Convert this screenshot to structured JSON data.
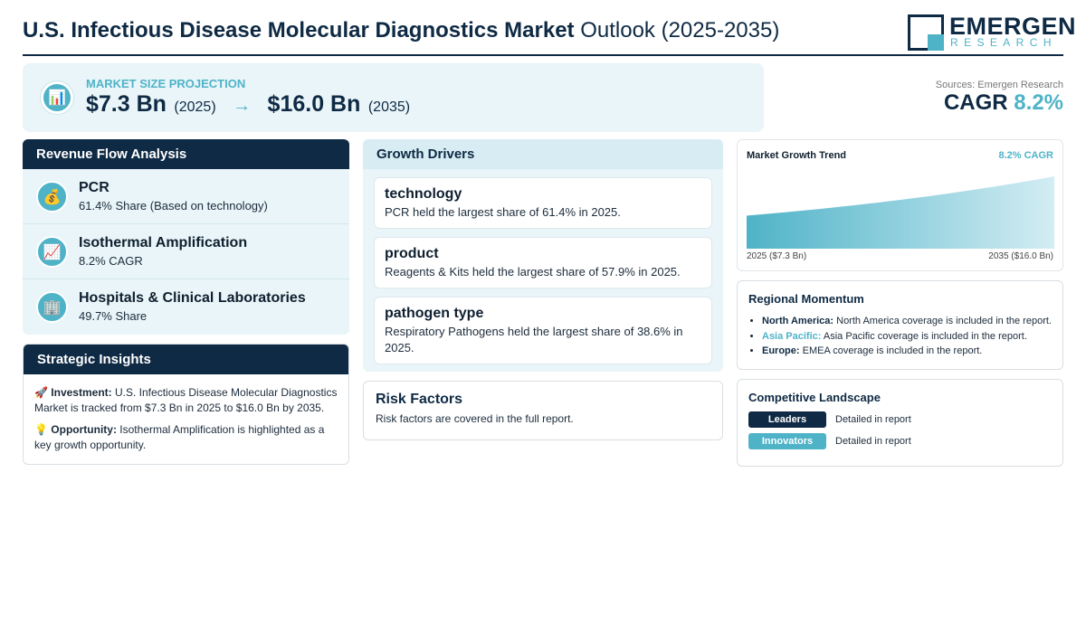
{
  "header": {
    "title_bold": "U.S. Infectious Disease Molecular Diagnostics Market",
    "title_light": "Outlook (2025-2035)",
    "logo_name": "EMERGEN",
    "logo_sub": "RESEARCH"
  },
  "projection": {
    "label": "MARKET SIZE PROJECTION",
    "start_value": "$7.3 Bn",
    "start_year": "(2025)",
    "arrow": "→",
    "end_value": "$16.0 Bn",
    "end_year": "(2035)",
    "icon": "bar-chart-icon"
  },
  "sources": "Sources: Emergen Research",
  "cagr": {
    "label": "CAGR",
    "value": "8.2%"
  },
  "revenue": {
    "title": "Revenue Flow Analysis",
    "items": [
      {
        "icon": "money-bag-icon",
        "glyph": "💰",
        "name": "PCR",
        "desc": "61.4% Share (Based on technology)"
      },
      {
        "icon": "trend-chart-icon",
        "glyph": "📈",
        "name": "Isothermal Amplification",
        "desc": "8.2% CAGR"
      },
      {
        "icon": "building-icon",
        "glyph": "🏢",
        "name": "Hospitals & Clinical Laboratories",
        "desc": "49.7% Share"
      }
    ]
  },
  "strategic": {
    "title": "Strategic Insights",
    "investment_glyph": "🚀",
    "investment_label": "Investment:",
    "investment_text": "U.S. Infectious Disease Molecular Diagnostics Market is tracked from $7.3 Bn in 2025 to $16.0 Bn by 2035.",
    "opportunity_glyph": "💡",
    "opportunity_label": "Opportunity:",
    "opportunity_text": "Isothermal Amplification is highlighted as a key growth opportunity."
  },
  "drivers": {
    "title": "Growth Drivers",
    "cards": [
      {
        "name": "technology",
        "desc": "PCR held the largest share of 61.4% in 2025."
      },
      {
        "name": "product",
        "desc": "Reagents & Kits held the largest share of 57.9% in 2025."
      },
      {
        "name": "pathogen type",
        "desc": "Respiratory Pathogens held the largest share of 38.6% in 2025."
      }
    ]
  },
  "risk": {
    "title": "Risk Factors",
    "desc": "Risk factors are covered in the full report."
  },
  "trend": {
    "title": "Market Growth Trend",
    "cagr_label": "8.2% CAGR",
    "x_start_label": "2025 ($7.3 Bn)",
    "x_end_label": "2035 ($16.0 Bn)",
    "fill_start": "#4fb3c8",
    "fill_end": "#d3edf3"
  },
  "chart_data": {
    "type": "area",
    "title": "Market Growth Trend",
    "x": [
      2025,
      2035
    ],
    "series": [
      {
        "values": [
          7.3,
          16.0
        ]
      }
    ],
    "annotations": [
      "8.2% CAGR"
    ],
    "tick_labels": [
      "2025 ($7.3 Bn)",
      "2035 ($16.0 Bn)"
    ],
    "grid": false
  },
  "regional": {
    "title": "Regional Momentum",
    "items": [
      {
        "region": "North America:",
        "text": "North America coverage is included in the report.",
        "accent": false
      },
      {
        "region": "Asia Pacific:",
        "text": "Asia Pacific coverage is included in the report.",
        "accent": true
      },
      {
        "region": "Europe:",
        "text": "EMEA coverage is included in the report.",
        "accent": false
      }
    ]
  },
  "competitive": {
    "title": "Competitive Landscape",
    "rows": [
      {
        "badge": "Leaders",
        "text": "Detailed in report"
      },
      {
        "badge": "Innovators",
        "text": "Detailed in report"
      }
    ]
  },
  "colors": {
    "navy": "#0f2a44",
    "teal": "#4fb3c8",
    "panel_bg": "#e9f5f8"
  }
}
